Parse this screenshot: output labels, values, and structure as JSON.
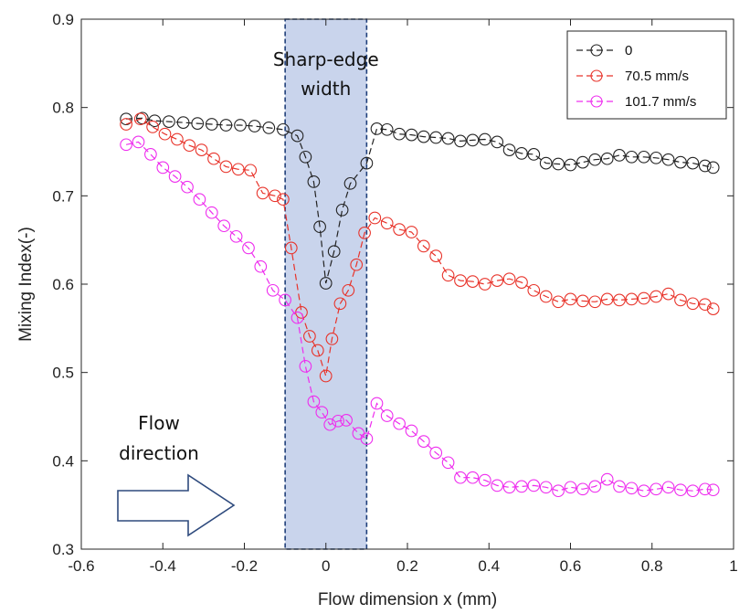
{
  "chart_data": {
    "type": "line",
    "xlabel": "Flow dimension x (mm)",
    "ylabel": "Mixing Index(-)",
    "xlim": [
      -0.6,
      1.0
    ],
    "ylim": [
      0.3,
      0.9
    ],
    "xticks": [
      "-0.6",
      "-0.4",
      "-0.2",
      "0",
      "0.2",
      "0.4",
      "0.6",
      "0.8",
      "1"
    ],
    "yticks": [
      "0.3",
      "0.4",
      "0.5",
      "0.6",
      "0.7",
      "0.8",
      "0.9"
    ],
    "grid": false,
    "legend_position": "top-right",
    "highlight_band": {
      "x_range": [
        -0.1,
        0.1
      ],
      "label_line1": "Sharp-edge",
      "label_line2": "width",
      "color": "#c9d4ec",
      "border_color": "#1f3f7a"
    },
    "annotation": {
      "line1": "Flow",
      "line2": "direction",
      "arrow": "right-arrow"
    },
    "series": [
      {
        "name": "0",
        "color": "#222222",
        "x": [
          -0.49,
          -0.45,
          -0.42,
          -0.385,
          -0.35,
          -0.315,
          -0.28,
          -0.245,
          -0.21,
          -0.175,
          -0.14,
          -0.105,
          -0.07,
          -0.05,
          -0.03,
          -0.015,
          0.0,
          0.02,
          0.04,
          0.06,
          0.1,
          0.125,
          0.15,
          0.18,
          0.21,
          0.24,
          0.27,
          0.3,
          0.33,
          0.36,
          0.39,
          0.42,
          0.45,
          0.48,
          0.51,
          0.54,
          0.57,
          0.6,
          0.63,
          0.66,
          0.69,
          0.72,
          0.75,
          0.78,
          0.81,
          0.84,
          0.87,
          0.9,
          0.93,
          0.95
        ],
        "y": [
          0.787,
          0.788,
          0.785,
          0.784,
          0.783,
          0.782,
          0.781,
          0.78,
          0.78,
          0.779,
          0.777,
          0.775,
          0.768,
          0.744,
          0.716,
          0.665,
          0.601,
          0.637,
          0.684,
          0.714,
          0.737,
          0.776,
          0.775,
          0.77,
          0.769,
          0.767,
          0.766,
          0.765,
          0.762,
          0.763,
          0.764,
          0.761,
          0.752,
          0.748,
          0.747,
          0.737,
          0.736,
          0.735,
          0.738,
          0.741,
          0.742,
          0.746,
          0.744,
          0.744,
          0.743,
          0.741,
          0.738,
          0.737,
          0.734,
          0.732
        ]
      },
      {
        "name": "70.5 mm/s",
        "color": "#e8332a",
        "x": [
          -0.49,
          -0.455,
          -0.425,
          -0.395,
          -0.365,
          -0.335,
          -0.305,
          -0.275,
          -0.245,
          -0.215,
          -0.185,
          -0.155,
          -0.125,
          -0.105,
          -0.085,
          -0.06,
          -0.04,
          -0.02,
          0.0,
          0.015,
          0.035,
          0.055,
          0.075,
          0.095,
          0.12,
          0.15,
          0.18,
          0.21,
          0.24,
          0.27,
          0.3,
          0.33,
          0.36,
          0.39,
          0.42,
          0.45,
          0.48,
          0.51,
          0.54,
          0.57,
          0.6,
          0.63,
          0.66,
          0.69,
          0.72,
          0.75,
          0.78,
          0.81,
          0.84,
          0.87,
          0.9,
          0.93,
          0.95
        ],
        "y": [
          0.781,
          0.787,
          0.778,
          0.77,
          0.764,
          0.757,
          0.752,
          0.742,
          0.733,
          0.73,
          0.729,
          0.703,
          0.7,
          0.696,
          0.641,
          0.568,
          0.541,
          0.525,
          0.496,
          0.538,
          0.578,
          0.593,
          0.622,
          0.658,
          0.675,
          0.669,
          0.662,
          0.659,
          0.643,
          0.632,
          0.61,
          0.604,
          0.603,
          0.6,
          0.604,
          0.606,
          0.602,
          0.593,
          0.586,
          0.58,
          0.583,
          0.581,
          0.58,
          0.583,
          0.582,
          0.583,
          0.584,
          0.586,
          0.589,
          0.582,
          0.578,
          0.577,
          0.572
        ]
      },
      {
        "name": "101.7 mm/s",
        "color": "#ee2cee",
        "x": [
          -0.49,
          -0.46,
          -0.43,
          -0.4,
          -0.37,
          -0.34,
          -0.31,
          -0.28,
          -0.25,
          -0.22,
          -0.19,
          -0.16,
          -0.13,
          -0.1,
          -0.07,
          -0.05,
          -0.03,
          -0.01,
          0.01,
          0.03,
          0.05,
          0.08,
          0.1,
          0.125,
          0.15,
          0.18,
          0.21,
          0.24,
          0.27,
          0.3,
          0.33,
          0.36,
          0.39,
          0.42,
          0.45,
          0.48,
          0.51,
          0.54,
          0.57,
          0.6,
          0.63,
          0.66,
          0.69,
          0.72,
          0.75,
          0.78,
          0.81,
          0.84,
          0.87,
          0.9,
          0.93,
          0.95
        ],
        "y": [
          0.758,
          0.761,
          0.747,
          0.732,
          0.722,
          0.71,
          0.696,
          0.681,
          0.666,
          0.654,
          0.641,
          0.62,
          0.593,
          0.582,
          0.562,
          0.507,
          0.467,
          0.455,
          0.441,
          0.445,
          0.446,
          0.431,
          0.425,
          0.465,
          0.451,
          0.442,
          0.434,
          0.422,
          0.409,
          0.398,
          0.381,
          0.381,
          0.378,
          0.372,
          0.37,
          0.371,
          0.372,
          0.37,
          0.366,
          0.37,
          0.368,
          0.371,
          0.379,
          0.371,
          0.369,
          0.366,
          0.368,
          0.37,
          0.367,
          0.366,
          0.368,
          0.367
        ]
      }
    ]
  }
}
